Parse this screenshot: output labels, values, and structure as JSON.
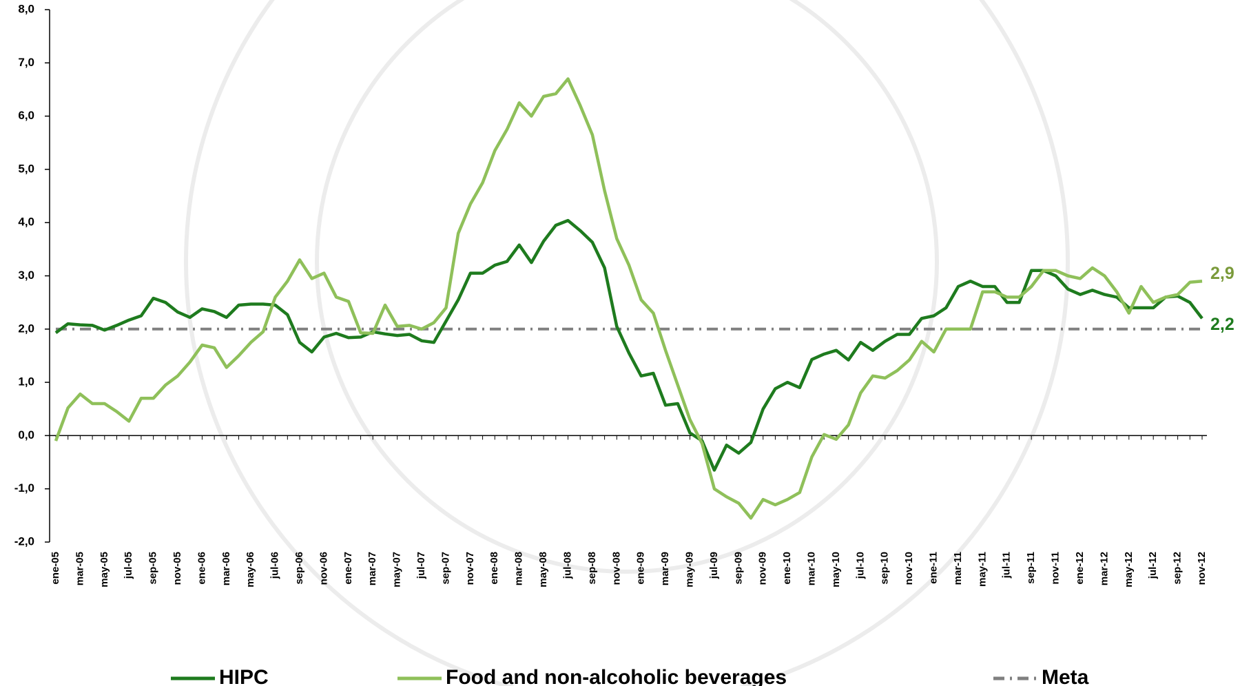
{
  "chart_data": {
    "type": "line",
    "categories": [
      "ene-05",
      null,
      "mar-05",
      null,
      "may-05",
      null,
      "jul-05",
      null,
      "sep-05",
      null,
      "nov-05",
      null,
      "ene-06",
      null,
      "mar-06",
      null,
      "may-06",
      null,
      "jul-06",
      null,
      "sep-06",
      null,
      "nov-06",
      null,
      "ene-07",
      null,
      "mar-07",
      null,
      "may-07",
      null,
      "jul-07",
      null,
      "sep-07",
      null,
      "nov-07",
      null,
      "ene-08",
      null,
      "mar-08",
      null,
      "may-08",
      null,
      "jul-08",
      null,
      "sep-08",
      null,
      "nov-08",
      null,
      "ene-09",
      null,
      "mar-09",
      null,
      "may-09",
      null,
      "jul-09",
      null,
      "sep-09",
      null,
      "nov-09",
      null,
      "ene-10",
      null,
      "mar-10",
      null,
      "may-10",
      null,
      "jul-10",
      null,
      "sep-10",
      null,
      "nov-10",
      null,
      "ene-11",
      null,
      "mar-11",
      null,
      "may-11",
      null,
      "jul-11",
      null,
      "sep-11",
      null,
      "nov-11",
      null,
      "ene-12",
      null,
      "mar-12",
      null,
      "may-12",
      null,
      "jul-12",
      null,
      "sep-12",
      null,
      "nov-12"
    ],
    "series": [
      {
        "name": "HIPC",
        "color": "#1e7b1e",
        "end_label": "2,2",
        "values": [
          1.93,
          2.1,
          2.08,
          2.07,
          1.98,
          2.07,
          2.17,
          2.25,
          2.58,
          2.5,
          2.32,
          2.22,
          2.38,
          2.33,
          2.22,
          2.45,
          2.47,
          2.47,
          2.45,
          2.27,
          1.75,
          1.57,
          1.85,
          1.92,
          1.84,
          1.85,
          1.95,
          1.91,
          1.88,
          1.9,
          1.78,
          1.75,
          2.15,
          2.55,
          3.05,
          3.05,
          3.2,
          3.27,
          3.58,
          3.25,
          3.65,
          3.95,
          4.04,
          3.85,
          3.63,
          3.15,
          2.05,
          1.55,
          1.12,
          1.17,
          0.57,
          0.6,
          0.05,
          -0.1,
          -0.65,
          -0.18,
          -0.33,
          -0.13,
          0.5,
          0.88,
          1.0,
          0.9,
          1.43,
          1.53,
          1.6,
          1.42,
          1.75,
          1.6,
          1.77,
          1.9,
          1.9,
          2.2,
          2.25,
          2.4,
          2.8,
          2.9,
          2.8,
          2.8,
          2.5,
          2.5,
          3.1,
          3.1,
          3.0,
          2.75,
          2.65,
          2.73,
          2.65,
          2.6,
          2.4,
          2.4,
          2.4,
          2.6,
          2.62,
          2.5,
          2.2
        ]
      },
      {
        "name": "Food and non-alcoholic beverages",
        "color": "#8fc05a",
        "end_label": "2,9",
        "values": [
          -0.1,
          0.52,
          0.78,
          0.6,
          0.6,
          0.45,
          0.27,
          0.7,
          0.7,
          0.95,
          1.12,
          1.38,
          1.7,
          1.65,
          1.28,
          1.5,
          1.75,
          1.95,
          2.6,
          2.9,
          3.3,
          2.95,
          3.05,
          2.6,
          2.52,
          1.93,
          1.92,
          2.45,
          2.05,
          2.07,
          2.0,
          2.12,
          2.4,
          3.8,
          4.35,
          4.75,
          5.35,
          5.75,
          6.25,
          6.0,
          6.37,
          6.42,
          6.7,
          6.2,
          5.65,
          4.6,
          3.7,
          3.2,
          2.55,
          2.3,
          1.6,
          0.95,
          0.3,
          -0.15,
          -1.0,
          -1.15,
          -1.27,
          -1.55,
          -1.2,
          -1.3,
          -1.2,
          -1.07,
          -0.4,
          0.02,
          -0.07,
          0.2,
          0.8,
          1.12,
          1.08,
          1.22,
          1.42,
          1.77,
          1.57,
          2.0,
          2.0,
          2.0,
          2.7,
          2.7,
          2.6,
          2.6,
          2.8,
          3.1,
          3.1,
          3.0,
          2.95,
          3.15,
          3.0,
          2.7,
          2.3,
          2.8,
          2.5,
          2.6,
          2.65,
          2.88,
          2.9
        ]
      },
      {
        "name": "Meta",
        "color": "#808080",
        "dash": "dashdot",
        "values": [
          2,
          2,
          2,
          2,
          2,
          2,
          2,
          2,
          2,
          2,
          2,
          2,
          2,
          2,
          2,
          2,
          2,
          2,
          2,
          2,
          2,
          2,
          2,
          2,
          2,
          2,
          2,
          2,
          2,
          2,
          2,
          2,
          2,
          2,
          2,
          2,
          2,
          2,
          2,
          2,
          2,
          2,
          2,
          2,
          2,
          2,
          2,
          2,
          2,
          2,
          2,
          2,
          2,
          2,
          2,
          2,
          2,
          2,
          2,
          2,
          2,
          2,
          2,
          2,
          2,
          2,
          2,
          2,
          2,
          2,
          2,
          2,
          2,
          2,
          2,
          2,
          2,
          2,
          2,
          2,
          2,
          2,
          2,
          2,
          2,
          2,
          2,
          2,
          2,
          2,
          2,
          2,
          2,
          2,
          2
        ]
      }
    ],
    "ylim": [
      -2,
      8
    ],
    "yticks": [
      {
        "value": -2,
        "label": "-2,0"
      },
      {
        "value": -1,
        "label": "-1,0"
      },
      {
        "value": 0,
        "label": "0,0"
      },
      {
        "value": 1,
        "label": "1,0"
      },
      {
        "value": 2,
        "label": "2,0"
      },
      {
        "value": 3,
        "label": "3,0"
      },
      {
        "value": 4,
        "label": "4,0"
      },
      {
        "value": 5,
        "label": "5,0"
      },
      {
        "value": 6,
        "label": "6,0"
      },
      {
        "value": 7,
        "label": "7,0"
      },
      {
        "value": 8,
        "label": "8,0"
      }
    ],
    "grid": false,
    "legend": "bottom"
  }
}
